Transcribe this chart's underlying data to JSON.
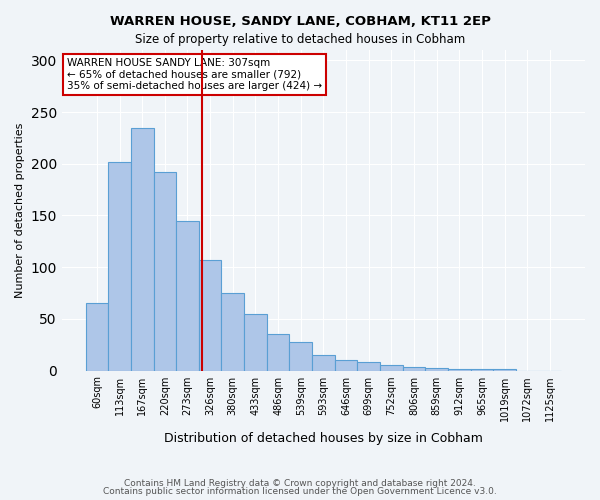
{
  "title1": "WARREN HOUSE, SANDY LANE, COBHAM, KT11 2EP",
  "title2": "Size of property relative to detached houses in Cobham",
  "xlabel": "Distribution of detached houses by size in Cobham",
  "ylabel": "Number of detached properties",
  "bin_labels": [
    "60sqm",
    "113sqm",
    "167sqm",
    "220sqm",
    "273sqm",
    "326sqm",
    "380sqm",
    "433sqm",
    "486sqm",
    "539sqm",
    "593sqm",
    "646sqm",
    "699sqm",
    "752sqm",
    "806sqm",
    "859sqm",
    "912sqm",
    "965sqm",
    "1019sqm",
    "1072sqm",
    "1125sqm"
  ],
  "bar_heights": [
    65,
    202,
    235,
    192,
    145,
    107,
    75,
    55,
    35,
    28,
    15,
    10,
    8,
    5,
    3,
    2,
    1,
    1,
    1,
    0,
    0
  ],
  "bar_color": "#aec6e8",
  "bar_edge_color": "#5a9fd4",
  "vline_x": 4.62,
  "vline_color": "#cc0000",
  "annotation_text": "WARREN HOUSE SANDY LANE: 307sqm\n← 65% of detached houses are smaller (792)\n35% of semi-detached houses are larger (424) →",
  "annotation_box_color": "#ffffff",
  "annotation_box_edge_color": "#cc0000",
  "ylim": [
    0,
    310
  ],
  "yticks": [
    0,
    50,
    100,
    150,
    200,
    250,
    300
  ],
  "footer1": "Contains HM Land Registry data © Crown copyright and database right 2024.",
  "footer2": "Contains public sector information licensed under the Open Government Licence v3.0.",
  "background_color": "#f0f4f8",
  "plot_bg_color": "#f0f4f8"
}
